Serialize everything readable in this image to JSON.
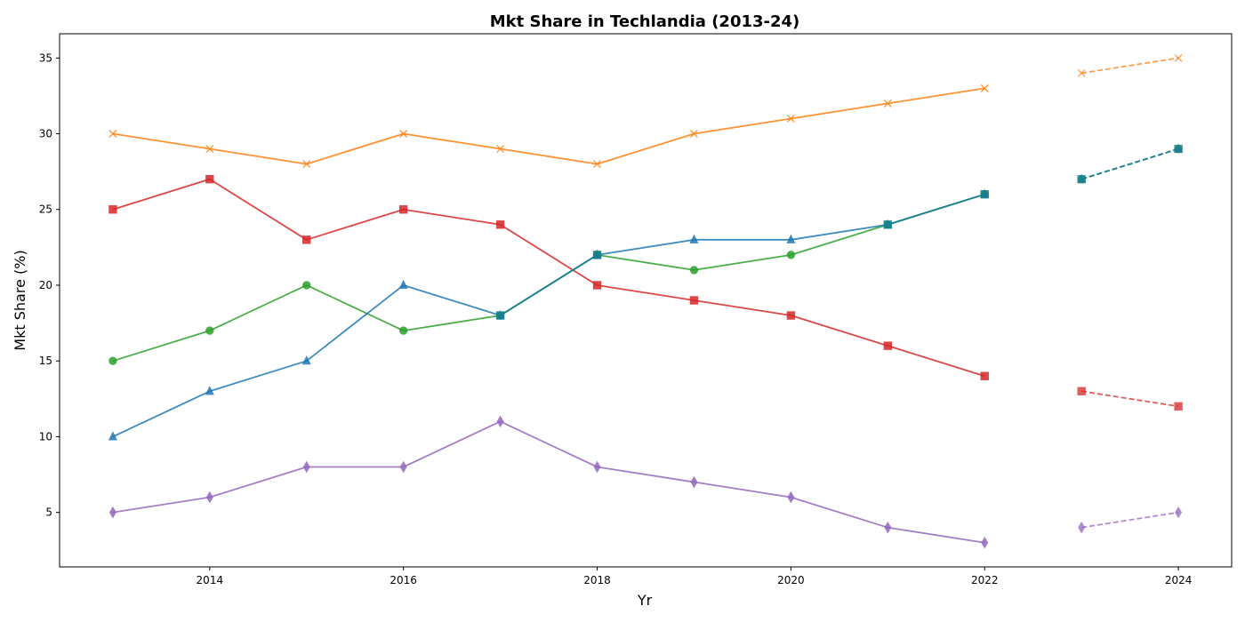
{
  "chart_data": {
    "type": "line",
    "title": "Mkt Share in Techlandia (2013-24)",
    "xlabel": "Yr",
    "ylabel": "Mkt Share (%)",
    "xlim": [
      2012.45,
      2024.55
    ],
    "ylim": [
      1.4,
      36.6
    ],
    "x_ticks": [
      2014,
      2016,
      2018,
      2020,
      2022,
      2024
    ],
    "y_ticks": [
      5,
      10,
      15,
      20,
      25,
      30,
      35
    ],
    "grid": false,
    "legend": "none",
    "actual_x": [
      2013,
      2014,
      2015,
      2016,
      2017,
      2018,
      2019,
      2020,
      2021,
      2022
    ],
    "forecast_x": [
      2023,
      2024
    ],
    "series": [
      {
        "color": "#ff7f0e",
        "marker": "x",
        "actual": [
          30,
          29,
          28,
          30,
          29,
          28,
          30,
          31,
          32,
          33
        ],
        "forecast": [
          34,
          35
        ]
      },
      {
        "color": "#d62728",
        "marker": "square",
        "actual": [
          25,
          27,
          23,
          25,
          24,
          20,
          19,
          18,
          16,
          14
        ],
        "forecast": [
          13,
          12
        ]
      },
      {
        "color": "#2ca02c",
        "marker": "circle",
        "actual": [
          15,
          17,
          20,
          17,
          18,
          22,
          21,
          22,
          24,
          26
        ],
        "forecast": [
          27,
          29
        ]
      },
      {
        "color": "#1f77b4",
        "marker": "triangle",
        "actual": [
          10,
          13,
          15,
          20,
          18,
          22,
          23,
          23,
          24,
          26
        ],
        "forecast": [
          27,
          29
        ]
      },
      {
        "color": "#9467bd",
        "marker": "diamond",
        "actual": [
          5,
          6,
          8,
          8,
          11,
          8,
          7,
          6,
          4,
          3
        ],
        "forecast": [
          4,
          5
        ]
      },
      {
        "color": "#17808c",
        "marker": "square",
        "actual": [
          null,
          null,
          null,
          null,
          18,
          22,
          null,
          null,
          24,
          26
        ],
        "forecast": [
          27,
          29
        ]
      }
    ]
  }
}
